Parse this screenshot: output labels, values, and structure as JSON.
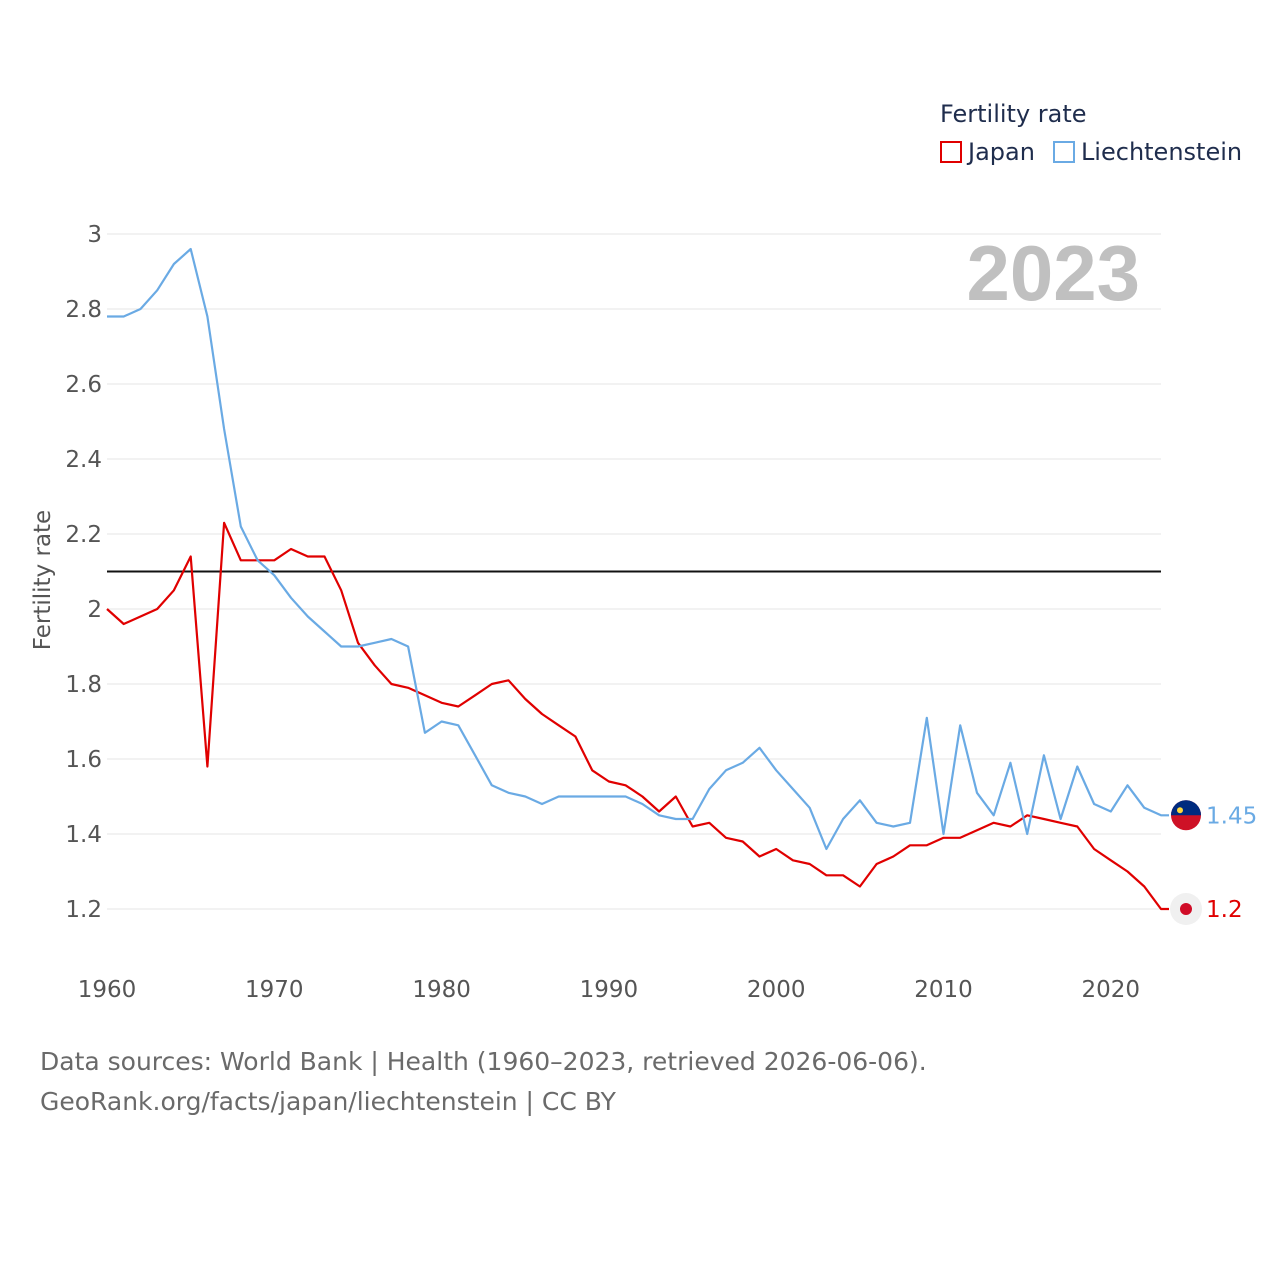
{
  "chart_data": {
    "type": "line",
    "title": "Fertility rate",
    "ylabel": "Fertility rate",
    "xlabel": "",
    "year_label": "2023",
    "xlim": [
      1960,
      2023
    ],
    "ylim": [
      1.1,
      3.0
    ],
    "yticks": [
      1.2,
      1.4,
      1.6,
      1.8,
      2,
      2.2,
      2.4,
      2.6,
      2.8,
      3
    ],
    "xticks": [
      1960,
      1970,
      1980,
      1990,
      2000,
      2010,
      2020
    ],
    "reference_line": 2.1,
    "series": [
      {
        "name": "Japan",
        "color": "#e00000",
        "end_label": "1.2",
        "flag": "japan-flag",
        "values": [
          [
            1960,
            2.0
          ],
          [
            1961,
            1.96
          ],
          [
            1962,
            1.98
          ],
          [
            1963,
            2.0
          ],
          [
            1964,
            2.05
          ],
          [
            1965,
            2.14
          ],
          [
            1966,
            1.58
          ],
          [
            1967,
            2.23
          ],
          [
            1968,
            2.13
          ],
          [
            1969,
            2.13
          ],
          [
            1970,
            2.13
          ],
          [
            1971,
            2.16
          ],
          [
            1972,
            2.14
          ],
          [
            1973,
            2.14
          ],
          [
            1974,
            2.05
          ],
          [
            1975,
            1.91
          ],
          [
            1976,
            1.85
          ],
          [
            1977,
            1.8
          ],
          [
            1978,
            1.79
          ],
          [
            1979,
            1.77
          ],
          [
            1980,
            1.75
          ],
          [
            1981,
            1.74
          ],
          [
            1982,
            1.77
          ],
          [
            1983,
            1.8
          ],
          [
            1984,
            1.81
          ],
          [
            1985,
            1.76
          ],
          [
            1986,
            1.72
          ],
          [
            1987,
            1.69
          ],
          [
            1988,
            1.66
          ],
          [
            1989,
            1.57
          ],
          [
            1990,
            1.54
          ],
          [
            1991,
            1.53
          ],
          [
            1992,
            1.5
          ],
          [
            1993,
            1.46
          ],
          [
            1994,
            1.5
          ],
          [
            1995,
            1.42
          ],
          [
            1996,
            1.43
          ],
          [
            1997,
            1.39
          ],
          [
            1998,
            1.38
          ],
          [
            1999,
            1.34
          ],
          [
            2000,
            1.36
          ],
          [
            2001,
            1.33
          ],
          [
            2002,
            1.32
          ],
          [
            2003,
            1.29
          ],
          [
            2004,
            1.29
          ],
          [
            2005,
            1.26
          ],
          [
            2006,
            1.32
          ],
          [
            2007,
            1.34
          ],
          [
            2008,
            1.37
          ],
          [
            2009,
            1.37
          ],
          [
            2010,
            1.39
          ],
          [
            2011,
            1.39
          ],
          [
            2012,
            1.41
          ],
          [
            2013,
            1.43
          ],
          [
            2014,
            1.42
          ],
          [
            2015,
            1.45
          ],
          [
            2016,
            1.44
          ],
          [
            2017,
            1.43
          ],
          [
            2018,
            1.42
          ],
          [
            2019,
            1.36
          ],
          [
            2020,
            1.33
          ],
          [
            2021,
            1.3
          ],
          [
            2022,
            1.26
          ],
          [
            2023,
            1.2
          ]
        ]
      },
      {
        "name": "Liechtenstein",
        "color": "#6aaae4",
        "end_label": "1.45",
        "flag": "liechtenstein-flag",
        "values": [
          [
            1960,
            2.78
          ],
          [
            1961,
            2.78
          ],
          [
            1962,
            2.8
          ],
          [
            1963,
            2.85
          ],
          [
            1964,
            2.92
          ],
          [
            1965,
            2.96
          ],
          [
            1966,
            2.78
          ],
          [
            1967,
            2.48
          ],
          [
            1968,
            2.22
          ],
          [
            1969,
            2.13
          ],
          [
            1970,
            2.09
          ],
          [
            1971,
            2.03
          ],
          [
            1972,
            1.98
          ],
          [
            1973,
            1.94
          ],
          [
            1974,
            1.9
          ],
          [
            1975,
            1.9
          ],
          [
            1976,
            1.91
          ],
          [
            1977,
            1.92
          ],
          [
            1978,
            1.9
          ],
          [
            1979,
            1.67
          ],
          [
            1980,
            1.7
          ],
          [
            1981,
            1.69
          ],
          [
            1982,
            1.61
          ],
          [
            1983,
            1.53
          ],
          [
            1984,
            1.51
          ],
          [
            1985,
            1.5
          ],
          [
            1986,
            1.48
          ],
          [
            1987,
            1.5
          ],
          [
            1988,
            1.5
          ],
          [
            1989,
            1.5
          ],
          [
            1990,
            1.5
          ],
          [
            1991,
            1.5
          ],
          [
            1992,
            1.48
          ],
          [
            1993,
            1.45
          ],
          [
            1994,
            1.44
          ],
          [
            1995,
            1.44
          ],
          [
            1996,
            1.52
          ],
          [
            1997,
            1.57
          ],
          [
            1998,
            1.59
          ],
          [
            1999,
            1.63
          ],
          [
            2000,
            1.57
          ],
          [
            2001,
            1.52
          ],
          [
            2002,
            1.47
          ],
          [
            2003,
            1.36
          ],
          [
            2004,
            1.44
          ],
          [
            2005,
            1.49
          ],
          [
            2006,
            1.43
          ],
          [
            2007,
            1.42
          ],
          [
            2008,
            1.43
          ],
          [
            2009,
            1.71
          ],
          [
            2010,
            1.4
          ],
          [
            2011,
            1.69
          ],
          [
            2012,
            1.51
          ],
          [
            2013,
            1.45
          ],
          [
            2014,
            1.59
          ],
          [
            2015,
            1.4
          ],
          [
            2016,
            1.61
          ],
          [
            2017,
            1.44
          ],
          [
            2018,
            1.58
          ],
          [
            2019,
            1.48
          ],
          [
            2020,
            1.46
          ],
          [
            2021,
            1.53
          ],
          [
            2022,
            1.47
          ],
          [
            2023,
            1.45
          ]
        ]
      }
    ]
  },
  "legend": {
    "title": "Fertility rate",
    "items": [
      {
        "label": "Japan",
        "color": "#e00000"
      },
      {
        "label": "Liechtenstein",
        "color": "#6aaae4"
      }
    ]
  },
  "footer": {
    "source_line": "Data sources: World Bank | Health (1960–2023, retrieved 2026-06-06).",
    "url_line": "GeoRank.org/facts/japan/liechtenstein | CC BY"
  }
}
